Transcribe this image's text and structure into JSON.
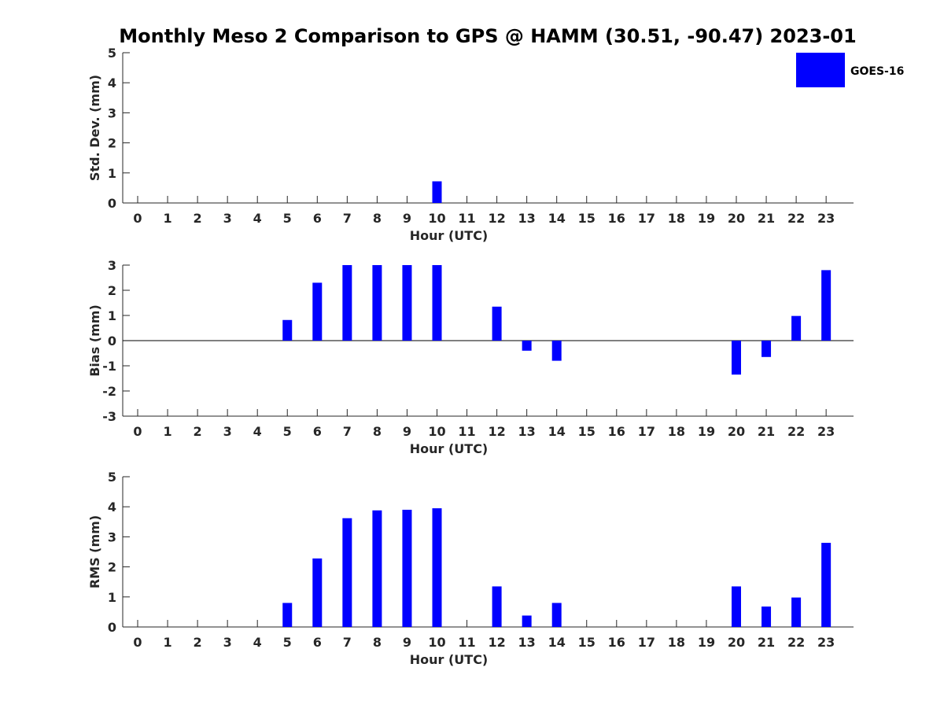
{
  "title": "Monthly Meso 2 Comparison to GPS @ HAMM (30.51, -90.47) 2023-01",
  "legend": {
    "label": "GOES-16",
    "color": "#0000ff",
    "position": "top-right"
  },
  "chart_data": [
    {
      "type": "bar",
      "name": "stddev",
      "xlabel": "Hour (UTC)",
      "ylabel": "Std. Dev. (mm)",
      "ylim": [
        0,
        5
      ],
      "yticks": [
        "0",
        "1",
        "2",
        "3",
        "4",
        "5"
      ],
      "categories": [
        "0",
        "1",
        "2",
        "3",
        "4",
        "5",
        "6",
        "7",
        "8",
        "9",
        "10",
        "11",
        "12",
        "13",
        "14",
        "15",
        "16",
        "17",
        "18",
        "19",
        "20",
        "21",
        "22",
        "23"
      ],
      "values": [
        null,
        null,
        null,
        null,
        null,
        0,
        0,
        0,
        0,
        0,
        0.72,
        null,
        0,
        0,
        0,
        null,
        null,
        null,
        null,
        null,
        0,
        0,
        0,
        0
      ],
      "grid": false
    },
    {
      "type": "bar",
      "name": "bias",
      "xlabel": "Hour (UTC)",
      "ylabel": "Bias (mm)",
      "ylim": [
        -3,
        3
      ],
      "yticks": [
        "-3",
        "-2",
        "-1",
        "0",
        "1",
        "2",
        "3"
      ],
      "categories": [
        "0",
        "1",
        "2",
        "3",
        "4",
        "5",
        "6",
        "7",
        "8",
        "9",
        "10",
        "11",
        "12",
        "13",
        "14",
        "15",
        "16",
        "17",
        "18",
        "19",
        "20",
        "21",
        "22",
        "23"
      ],
      "values": [
        null,
        null,
        null,
        null,
        null,
        0.82,
        2.3,
        3.0,
        3.0,
        3.0,
        3.0,
        null,
        1.35,
        -0.4,
        -0.8,
        null,
        null,
        null,
        null,
        null,
        -1.35,
        -0.65,
        0.98,
        2.8
      ],
      "zero_line": true,
      "grid": false
    },
    {
      "type": "bar",
      "name": "rms",
      "xlabel": "Hour (UTC)",
      "ylabel": "RMS (mm)",
      "ylim": [
        0,
        5
      ],
      "yticks": [
        "0",
        "1",
        "2",
        "3",
        "4",
        "5"
      ],
      "categories": [
        "0",
        "1",
        "2",
        "3",
        "4",
        "5",
        "6",
        "7",
        "8",
        "9",
        "10",
        "11",
        "12",
        "13",
        "14",
        "15",
        "16",
        "17",
        "18",
        "19",
        "20",
        "21",
        "22",
        "23"
      ],
      "values": [
        null,
        null,
        null,
        null,
        null,
        0.8,
        2.28,
        3.62,
        3.88,
        3.9,
        3.95,
        null,
        1.35,
        0.38,
        0.8,
        null,
        null,
        null,
        null,
        null,
        1.35,
        0.68,
        0.98,
        2.8
      ],
      "grid": false
    }
  ]
}
